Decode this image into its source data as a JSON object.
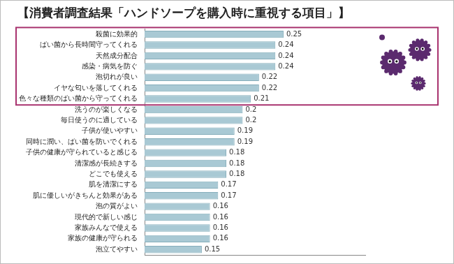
{
  "chart_data": {
    "type": "bar",
    "orientation": "horizontal",
    "title": "【消費者調査結果「ハンドソープを購入時に重視する項目」】",
    "categories": [
      "殺菌に効果的",
      "ばい菌から長時間守ってくれる",
      "天然成分配合",
      "感染・病気を防ぐ",
      "泡切れが良い",
      "イヤな匂いを落してくれる",
      "色々な種類のばい菌から守ってくれる",
      "洗うのが楽しくなる",
      "毎日使うのに適している",
      "子供が使いやすい",
      "同時に潤い、ばい菌を防いでくれる",
      "子供の健康が守られていると感じる",
      "清潔感が長続きする",
      "どこでも使える",
      "肌を清潔にする",
      "肌に優しいがきちんと効果がある",
      "泡の質がよい",
      "現代的で新しい感じ",
      "家族みんなで使える",
      "家族の健康が守られる",
      "泡立てやすい"
    ],
    "values": [
      0.25,
      0.24,
      0.24,
      0.24,
      0.22,
      0.22,
      0.21,
      0.2,
      0.2,
      0.19,
      0.19,
      0.18,
      0.18,
      0.18,
      0.17,
      0.17,
      0.16,
      0.16,
      0.16,
      0.16,
      0.15
    ],
    "color": "#a9c9d4",
    "xlim": [
      0.08,
      0.35
    ],
    "grid": false,
    "data_labels": true,
    "tick_labels": "y"
  }
}
